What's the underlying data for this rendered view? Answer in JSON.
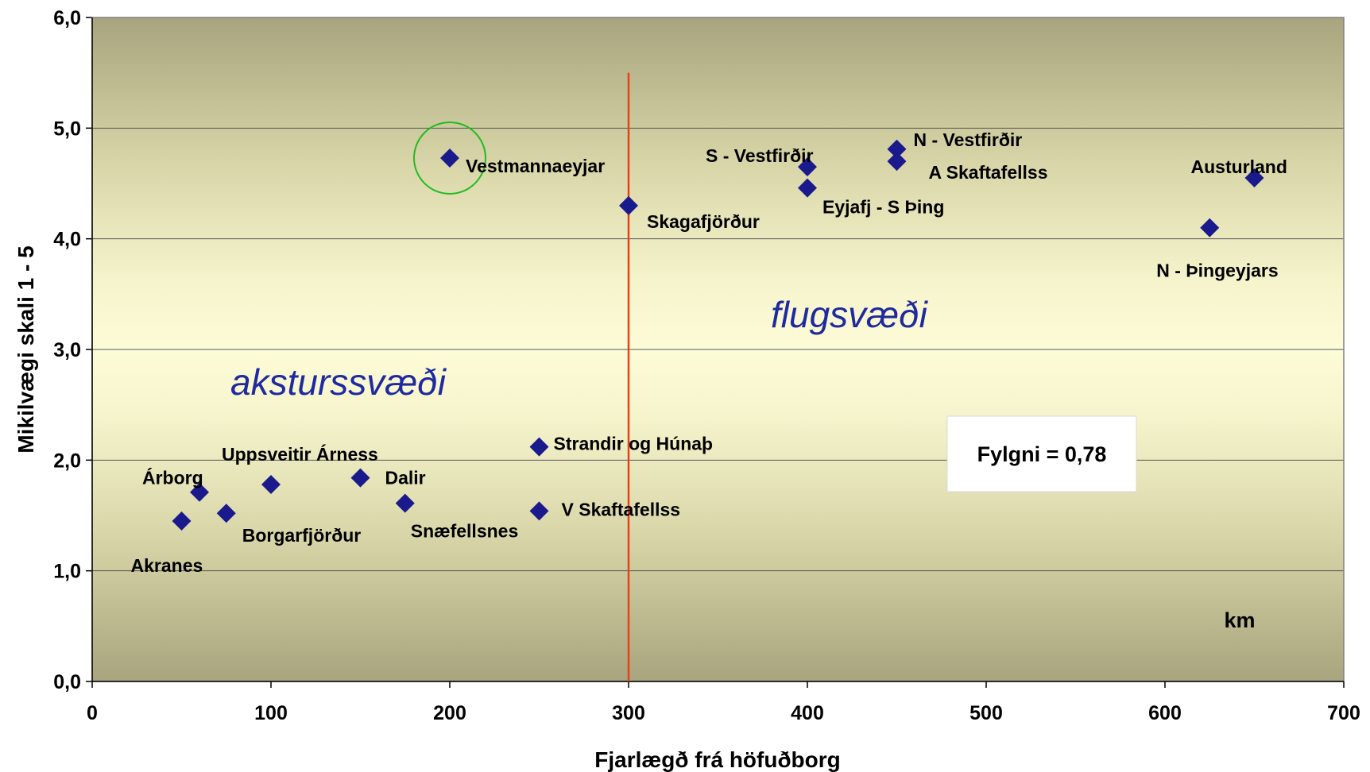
{
  "chart_data": {
    "type": "scatter",
    "xlabel": "Fjarlægð frá höfuðborg",
    "ylabel": "Mikilvægi skali 1 - 5",
    "xlim": [
      0,
      700
    ],
    "ylim": [
      0,
      6
    ],
    "x_ticks": [
      "0",
      "100",
      "200",
      "300",
      "400",
      "500",
      "600",
      "700"
    ],
    "y_ticks": [
      "0,0",
      "1,0",
      "2,0",
      "3,0",
      "4,0",
      "5,0",
      "6,0"
    ],
    "grid": "horizontal",
    "points": [
      {
        "label": "Akranes",
        "x": 50,
        "y": 1.45
      },
      {
        "label": "Árborg",
        "x": 60,
        "y": 1.71
      },
      {
        "label": "Borgarfjörður",
        "x": 75,
        "y": 1.52
      },
      {
        "label": "Uppsveitir Árness",
        "x": 100,
        "y": 1.78
      },
      {
        "label": "Dalir",
        "x": 150,
        "y": 1.84
      },
      {
        "label": "Snæfellsnes",
        "x": 175,
        "y": 1.61
      },
      {
        "label": "Strandir og Húnaþ",
        "x": 250,
        "y": 2.12
      },
      {
        "label": "V Skaftafellss",
        "x": 250,
        "y": 1.54
      },
      {
        "label": "Vestmannaeyjar",
        "x": 200,
        "y": 4.73
      },
      {
        "label": "Skagafjörður",
        "x": 300,
        "y": 4.3
      },
      {
        "label": "S - Vestfirðir",
        "x": 400,
        "y": 4.65
      },
      {
        "label": "Eyjafj - S Þing",
        "x": 400,
        "y": 4.46
      },
      {
        "label": "N - Vestfirðir",
        "x": 450,
        "y": 4.81
      },
      {
        "label": "A Skaftafellss",
        "x": 450,
        "y": 4.7
      },
      {
        "label": "Austurland",
        "x": 650,
        "y": 4.55
      },
      {
        "label": "N - Þingeyjars",
        "x": 625,
        "y": 4.1
      }
    ],
    "divider_x": 300,
    "highlight": "Vestmannaeyjar",
    "annotations": {
      "left_zone": "aksturssvæði",
      "right_zone": "flugsvæði",
      "unit": "km",
      "correlation": "Fylgni = 0,78"
    },
    "colors": {
      "marker": "#1a1a8c",
      "divider": "#e8401c",
      "highlight_circle": "#22bb22",
      "zone_text": "#1f2a9e",
      "plot_outer": "#a8a47e",
      "plot_inner": "#fdfcd8"
    }
  }
}
